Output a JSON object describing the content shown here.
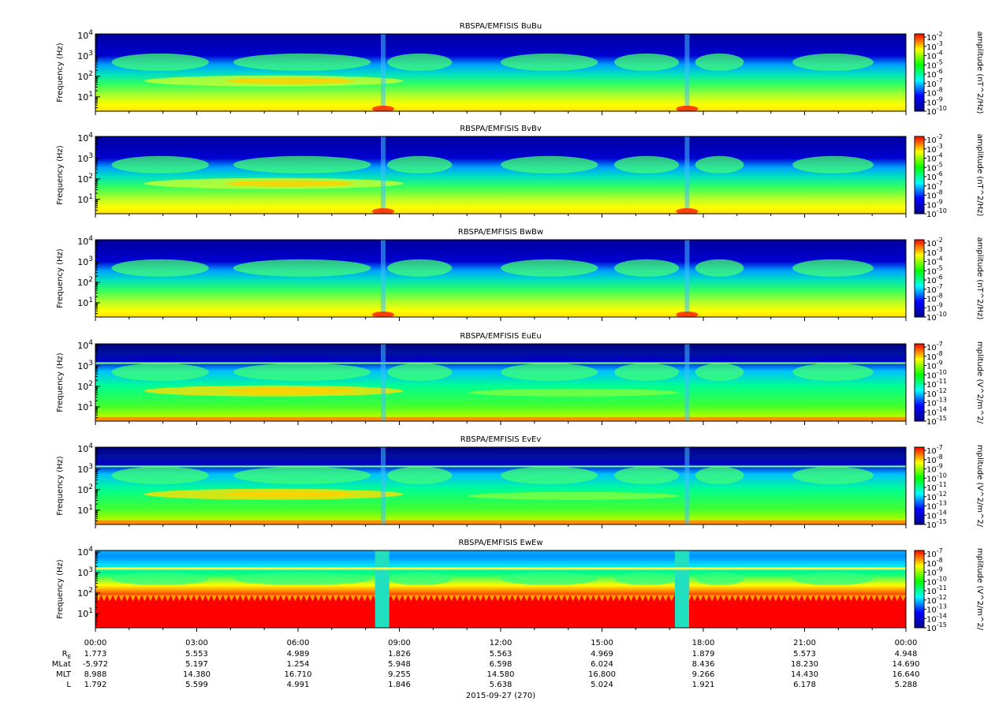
{
  "figure": {
    "date_label": "2015-09-27 (270)"
  },
  "time_axis": {
    "ticks": [
      "00:00",
      "03:00",
      "06:00",
      "09:00",
      "12:00",
      "15:00",
      "18:00",
      "21:00",
      "00:00"
    ]
  },
  "ephemeris": {
    "rows": [
      {
        "label": "RE",
        "label_main": "R",
        "label_sub": "E",
        "values": [
          "1.773",
          "5.553",
          "4.989",
          "1.826",
          "5.563",
          "4.969",
          "1.879",
          "5.573",
          "4.948"
        ]
      },
      {
        "label": "MLat",
        "label_main": "MLat",
        "label_sub": "",
        "values": [
          "-5.972",
          "5.197",
          "1.254",
          "5.948",
          "6.598",
          "6.024",
          "8.436",
          "18.230",
          "14.690"
        ]
      },
      {
        "label": "MLT",
        "label_main": "MLT",
        "label_sub": "",
        "values": [
          "8.988",
          "14.380",
          "16.710",
          "9.255",
          "14.580",
          "16.800",
          "9.266",
          "14.430",
          "16.640"
        ]
      },
      {
        "label": "L",
        "label_main": "L",
        "label_sub": "",
        "values": [
          "1.792",
          "5.599",
          "4.991",
          "1.846",
          "5.638",
          "5.024",
          "1.921",
          "6.178",
          "5.288"
        ]
      }
    ]
  },
  "colors": {
    "spectrogram_map": [
      "#00008b",
      "#0000ff",
      "#00ffff",
      "#00ff00",
      "#ffff00",
      "#ff0000"
    ]
  },
  "chart_data": [
    {
      "type": "heatmap",
      "title": "RBSPA/EMFISIS  BuBu",
      "ylabel": "Frequency (Hz)",
      "yscale": "log",
      "y_ticks": [
        "10^1",
        "10^2",
        "10^3",
        "10^4"
      ],
      "ylim": [
        2,
        12000
      ],
      "colorbar": {
        "label": "amplitude (nT^2/Hz)",
        "range_exp": [
          -10,
          -2
        ],
        "ticks": [
          "10^-2",
          "10^-3",
          "10^-4",
          "10^-5",
          "10^-6",
          "10^-7",
          "10^-8",
          "10^-9",
          "10^-10"
        ]
      }
    },
    {
      "type": "heatmap",
      "title": "RBSPA/EMFISIS  BvBv",
      "ylabel": "Frequency (Hz)",
      "yscale": "log",
      "y_ticks": [
        "10^1",
        "10^2",
        "10^3",
        "10^4"
      ],
      "ylim": [
        2,
        12000
      ],
      "colorbar": {
        "label": "amplitude (nT^2/Hz)",
        "range_exp": [
          -10,
          -2
        ],
        "ticks": [
          "10^-2",
          "10^-3",
          "10^-4",
          "10^-5",
          "10^-6",
          "10^-7",
          "10^-8",
          "10^-9",
          "10^-10"
        ]
      }
    },
    {
      "type": "heatmap",
      "title": "RBSPA/EMFISIS  BwBw",
      "ylabel": "Frequency (Hz)",
      "yscale": "log",
      "y_ticks": [
        "10^1",
        "10^2",
        "10^3",
        "10^4"
      ],
      "ylim": [
        2,
        12000
      ],
      "colorbar": {
        "label": "amplitude (nT^2/Hz)",
        "range_exp": [
          -10,
          -2
        ],
        "ticks": [
          "10^-2",
          "10^-3",
          "10^-4",
          "10^-5",
          "10^-6",
          "10^-7",
          "10^-8",
          "10^-9",
          "10^-10"
        ]
      }
    },
    {
      "type": "heatmap",
      "title": "RBSPA/EMFISIS  EuEu",
      "ylabel": "Frequency (Hz)",
      "yscale": "log",
      "y_ticks": [
        "10^1",
        "10^2",
        "10^3",
        "10^4"
      ],
      "ylim": [
        2,
        12000
      ],
      "colorbar": {
        "label": "mplitude (V^2/m^2/",
        "range_exp": [
          -15,
          -7
        ],
        "ticks": [
          "10^-7",
          "10^-8",
          "10^-9",
          "10^-10",
          "10^-11",
          "10^-12",
          "10^-13",
          "10^-14",
          "10^-15"
        ]
      }
    },
    {
      "type": "heatmap",
      "title": "RBSPA/EMFISIS  EvEv",
      "ylabel": "Frequency (Hz)",
      "yscale": "log",
      "y_ticks": [
        "10^1",
        "10^2",
        "10^3",
        "10^4"
      ],
      "ylim": [
        2,
        12000
      ],
      "colorbar": {
        "label": "mplitude (V^2/m^2/",
        "range_exp": [
          -15,
          -7
        ],
        "ticks": [
          "10^-7",
          "10^-8",
          "10^-9",
          "10^-10",
          "10^-11",
          "10^-12",
          "10^-13",
          "10^-14",
          "10^-15"
        ]
      }
    },
    {
      "type": "heatmap",
      "title": "RBSPA/EMFISIS  EwEw",
      "ylabel": "Frequency (Hz)",
      "yscale": "log",
      "y_ticks": [
        "10^1",
        "10^2",
        "10^3",
        "10^4"
      ],
      "ylim": [
        2,
        12000
      ],
      "colorbar": {
        "label": "mplitude (V^2/m^2/",
        "range_exp": [
          -15,
          -7
        ],
        "ticks": [
          "10^-7",
          "10^-8",
          "10^-9",
          "10^-10",
          "10^-11",
          "10^-12",
          "10^-13",
          "10^-14",
          "10^-15"
        ]
      }
    }
  ]
}
